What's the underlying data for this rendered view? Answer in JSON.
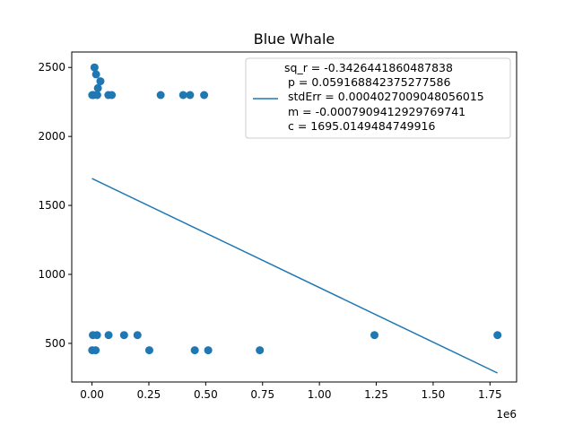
{
  "chart_data": {
    "type": "scatter",
    "title": "Blue Whale",
    "xlabel": "",
    "ylabel": "",
    "x_offset_label": "1e6",
    "xlim": [
      -0.089,
      1.867
    ],
    "ylim": [
      220,
      2612
    ],
    "x_ticks": [
      {
        "value": 0.0,
        "label": "0.00"
      },
      {
        "value": 0.25,
        "label": "0.25"
      },
      {
        "value": 0.5,
        "label": "0.50"
      },
      {
        "value": 0.75,
        "label": "0.75"
      },
      {
        "value": 1.0,
        "label": "1.00"
      },
      {
        "value": 1.25,
        "label": "1.25"
      },
      {
        "value": 1.5,
        "label": "1.50"
      },
      {
        "value": 1.75,
        "label": "1.75"
      }
    ],
    "y_ticks": [
      {
        "value": 500,
        "label": "500"
      },
      {
        "value": 1000,
        "label": "1000"
      },
      {
        "value": 1500,
        "label": "1500"
      },
      {
        "value": 2000,
        "label": "2000"
      },
      {
        "value": 2500,
        "label": "2500"
      }
    ],
    "grid": false,
    "legend_position": "top-right",
    "series": [
      {
        "kind": "scatter",
        "color": "#1f77b4",
        "points": [
          {
            "x": 0.001,
            "y": 2300
          },
          {
            "x": 0.006,
            "y": 2300
          },
          {
            "x": 0.011,
            "y": 2500
          },
          {
            "x": 0.018,
            "y": 2450
          },
          {
            "x": 0.023,
            "y": 2300
          },
          {
            "x": 0.026,
            "y": 2350
          },
          {
            "x": 0.037,
            "y": 2400
          },
          {
            "x": 0.072,
            "y": 2300
          },
          {
            "x": 0.087,
            "y": 2300
          },
          {
            "x": 0.302,
            "y": 2300
          },
          {
            "x": 0.401,
            "y": 2300
          },
          {
            "x": 0.431,
            "y": 2300
          },
          {
            "x": 0.493,
            "y": 2300
          },
          {
            "x": 0.001,
            "y": 450
          },
          {
            "x": 0.004,
            "y": 560
          },
          {
            "x": 0.016,
            "y": 450
          },
          {
            "x": 0.022,
            "y": 560
          },
          {
            "x": 0.073,
            "y": 560
          },
          {
            "x": 0.141,
            "y": 560
          },
          {
            "x": 0.2,
            "y": 560
          },
          {
            "x": 0.252,
            "y": 450
          },
          {
            "x": 0.452,
            "y": 450
          },
          {
            "x": 0.511,
            "y": 450
          },
          {
            "x": 0.738,
            "y": 450
          },
          {
            "x": 1.242,
            "y": 560
          },
          {
            "x": 1.783,
            "y": 560
          }
        ]
      },
      {
        "kind": "line",
        "color": "#1f77b4",
        "name": "sq_r = -0.3426441860487838\n p = 0.059168842375277586\n stdErr = 0.0004027009048056015\n m = -0.0007909412929769741\n c = 1695.0149484749916",
        "points": [
          {
            "x": 0.0,
            "y": 1695
          },
          {
            "x": 1.783,
            "y": 285
          }
        ]
      }
    ],
    "legend": {
      "lines": [
        "sq_r = -0.3426441860487838",
        "p = 0.059168842375277586",
        "stdErr = 0.0004027009048056015",
        "m = -0.0007909412929769741",
        "c = 1695.0149484749916"
      ]
    }
  }
}
